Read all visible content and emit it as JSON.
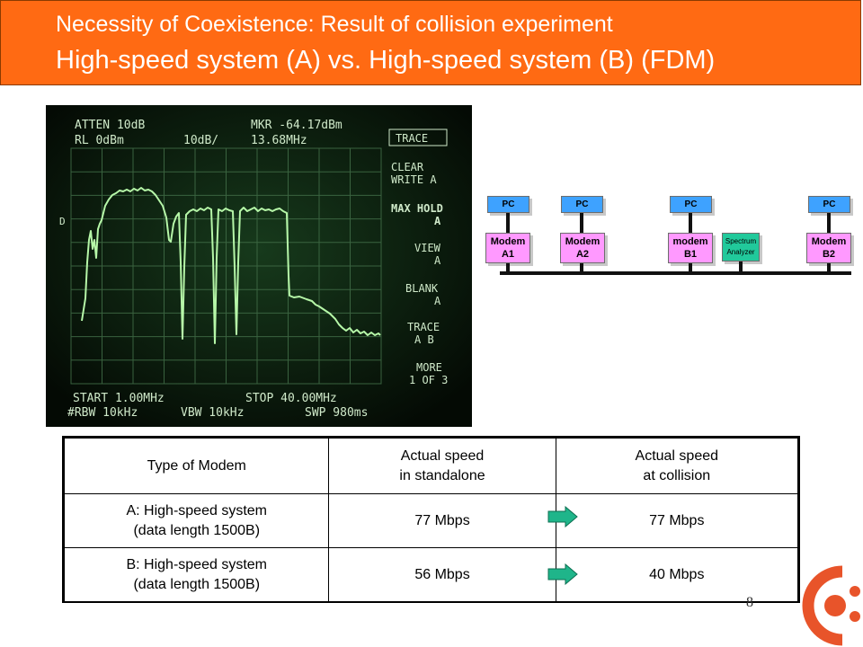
{
  "header": {
    "title_line1": "Necessity of Coexistence:  Result of collision experiment",
    "title_line2": "High-speed system (A) vs. High-speed system (B) (FDM)"
  },
  "scope": {
    "top_left_1": "ATTEN 10dB",
    "top_left_2": "RL 0dBm",
    "scale": "10dB/",
    "marker_1": "MKR -64.17dBm",
    "marker_2": "13.68MHz",
    "trace_key": "TRACE",
    "left_label": "D",
    "menu": [
      [
        "CLEAR",
        "WRITE A"
      ],
      [
        "MAX HOLD",
        "A"
      ],
      [
        "VIEW",
        "A"
      ],
      [
        "BLANK",
        "A"
      ],
      [
        "TRACE",
        "A  B"
      ],
      [
        "MORE",
        "1 OF 3"
      ]
    ],
    "start": "START 1.00MHz",
    "stop": "STOP 40.00MHz",
    "rbw": "#RBW 10kHz",
    "vbw": "VBW 10kHz",
    "swp": "SWP 980ms"
  },
  "diagram": {
    "pc_label": "PC",
    "modems": [
      {
        "line1": "Modem",
        "line2": "A1"
      },
      {
        "line1": "Modem",
        "line2": "A2"
      },
      {
        "line1": "modem",
        "line2": "B1"
      },
      {
        "line1": "Modem",
        "line2": "B2"
      }
    ],
    "analyzer": {
      "line1": "Spectrum",
      "line2": "Analyzer"
    }
  },
  "table": {
    "headers": [
      {
        "line1": "Type of Modem",
        "line2": ""
      },
      {
        "line1": "Actual speed",
        "line2": "in standalone"
      },
      {
        "line1": "Actual speed",
        "line2": "at collision"
      }
    ],
    "rows": [
      {
        "type_line1": "A: High-speed system",
        "type_line2": "(data length 1500B)",
        "standalone": "77 Mbps",
        "collision": "77 Mbps"
      },
      {
        "type_line1": "B: High-speed system",
        "type_line2": "(data length 1500B)",
        "standalone": "56 Mbps",
        "collision": "40 Mbps"
      }
    ]
  },
  "page_number": "8",
  "colors": {
    "header": "#ff6a13",
    "pc": "#3ea2ff",
    "modem": "#ff99ff",
    "analyzer": "#21c99b",
    "arrow": "#1fb58a",
    "logo": "#e8542a"
  }
}
